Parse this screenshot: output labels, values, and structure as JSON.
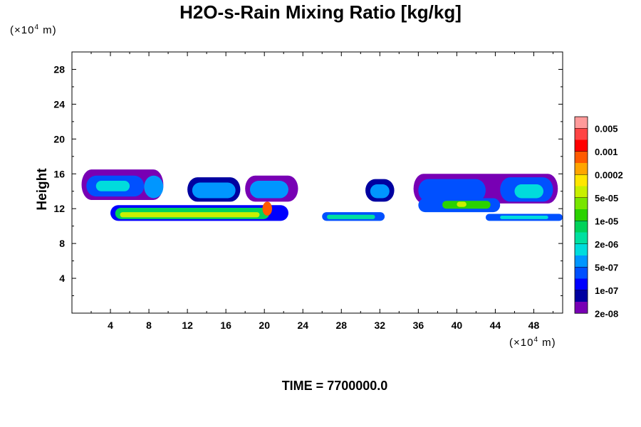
{
  "chart_data": {
    "type": "heatmap",
    "title": "H2O-s-Rain Mixing Ratio [kg/kg]",
    "xlabel": "",
    "ylabel": "Height",
    "x_unit": "(×10⁴ m)",
    "y_unit": "(×10⁴ m)",
    "x_unit_base": "(×10",
    "x_unit_exp": "4",
    "x_unit_tail": " m)",
    "y_unit_base": "(×10",
    "y_unit_exp": "4",
    "y_unit_tail": " m)",
    "xlim": [
      0,
      51
    ],
    "ylim": [
      0,
      30
    ],
    "xticks": [
      4,
      8,
      12,
      16,
      20,
      24,
      28,
      32,
      36,
      40,
      44,
      48
    ],
    "yticks": [
      4,
      8,
      12,
      16,
      20,
      24,
      28
    ],
    "time_label": "TIME = 7700000.0",
    "colorbar": {
      "colors": [
        "#ff9a9a",
        "#ff4444",
        "#ff0000",
        "#ff5a00",
        "#ffa500",
        "#ffe600",
        "#c8f000",
        "#78e600",
        "#2ad200",
        "#00d25a",
        "#00e0a0",
        "#00dcdc",
        "#0096ff",
        "#0050ff",
        "#0000ff",
        "#0000a0",
        "#7800b4"
      ],
      "labels": [
        "0.005",
        "0.001",
        "0.0002",
        "5e-05",
        "1e-05",
        "2e-06",
        "5e-07",
        "1e-07",
        "2e-08"
      ],
      "label_index": [
        1,
        3,
        5,
        7,
        9,
        11,
        13,
        15,
        17
      ]
    },
    "regions": [
      {
        "name": "upper-layer-left-outer",
        "x": [
          1.0,
          9.5
        ],
        "y": [
          13.0,
          16.5
        ],
        "level": 16
      },
      {
        "name": "upper-layer-left-mid",
        "x": [
          1.5,
          7.5
        ],
        "y": [
          13.4,
          15.8
        ],
        "level": 13
      },
      {
        "name": "upper-layer-left-core",
        "x": [
          2.5,
          6.0
        ],
        "y": [
          14.0,
          15.2
        ],
        "level": 11
      },
      {
        "name": "upper-layer-left-b",
        "x": [
          7.5,
          9.5
        ],
        "y": [
          13.2,
          15.8
        ],
        "level": 12
      },
      {
        "name": "upper-layer-mid1-outer",
        "x": [
          12.0,
          17.5
        ],
        "y": [
          12.8,
          15.6
        ],
        "level": 15
      },
      {
        "name": "upper-layer-mid1-core",
        "x": [
          12.5,
          17.0
        ],
        "y": [
          13.2,
          15.0
        ],
        "level": 12
      },
      {
        "name": "upper-layer-mid2-outer",
        "x": [
          18.0,
          23.5
        ],
        "y": [
          12.8,
          15.8
        ],
        "level": 16
      },
      {
        "name": "upper-layer-mid2-core",
        "x": [
          18.5,
          22.5
        ],
        "y": [
          13.2,
          15.2
        ],
        "level": 12
      },
      {
        "name": "upper-layer-mid3-outer",
        "x": [
          30.5,
          33.5
        ],
        "y": [
          12.8,
          15.4
        ],
        "level": 15
      },
      {
        "name": "upper-layer-mid3-core",
        "x": [
          31.0,
          33.0
        ],
        "y": [
          13.2,
          14.8
        ],
        "level": 12
      },
      {
        "name": "upper-layer-right-outer",
        "x": [
          35.5,
          50.5
        ],
        "y": [
          12.6,
          16.0
        ],
        "level": 16
      },
      {
        "name": "upper-layer-right-a",
        "x": [
          36.0,
          43.0
        ],
        "y": [
          12.8,
          15.4
        ],
        "level": 13
      },
      {
        "name": "upper-layer-right-b",
        "x": [
          44.5,
          50.0
        ],
        "y": [
          12.8,
          15.6
        ],
        "level": 13
      },
      {
        "name": "upper-layer-right-core",
        "x": [
          46.0,
          49.0
        ],
        "y": [
          13.2,
          14.8
        ],
        "level": 11
      },
      {
        "name": "lower-layer-left-outer",
        "x": [
          4.0,
          22.5
        ],
        "y": [
          10.6,
          12.4
        ],
        "level": 14
      },
      {
        "name": "lower-layer-left-green",
        "x": [
          4.5,
          20.5
        ],
        "y": [
          10.8,
          12.1
        ],
        "level": 9
      },
      {
        "name": "lower-layer-left-yellow",
        "x": [
          5.0,
          19.5
        ],
        "y": [
          11.0,
          11.6
        ],
        "level": 6
      },
      {
        "name": "lower-layer-left-peak",
        "x": [
          19.8,
          20.8
        ],
        "y": [
          11.2,
          12.8
        ],
        "level": 3
      },
      {
        "name": "lower-layer-mid-outer",
        "x": [
          26.0,
          32.5
        ],
        "y": [
          10.6,
          11.6
        ],
        "level": 13
      },
      {
        "name": "lower-layer-mid-core",
        "x": [
          26.5,
          31.5
        ],
        "y": [
          10.8,
          11.3
        ],
        "level": 10
      },
      {
        "name": "lower-layer-right-a-outer",
        "x": [
          36.0,
          44.5
        ],
        "y": [
          11.6,
          13.2
        ],
        "level": 13
      },
      {
        "name": "lower-layer-right-a-core",
        "x": [
          38.5,
          43.5
        ],
        "y": [
          12.0,
          12.9
        ],
        "level": 8
      },
      {
        "name": "lower-layer-right-peak",
        "x": [
          40.0,
          41.0
        ],
        "y": [
          12.2,
          12.8
        ],
        "level": 6
      },
      {
        "name": "lower-layer-right-b-outer",
        "x": [
          43.0,
          51.0
        ],
        "y": [
          10.6,
          11.4
        ],
        "level": 13
      },
      {
        "name": "lower-layer-right-b-core",
        "x": [
          44.5,
          49.5
        ],
        "y": [
          10.8,
          11.2
        ],
        "level": 11
      }
    ]
  }
}
